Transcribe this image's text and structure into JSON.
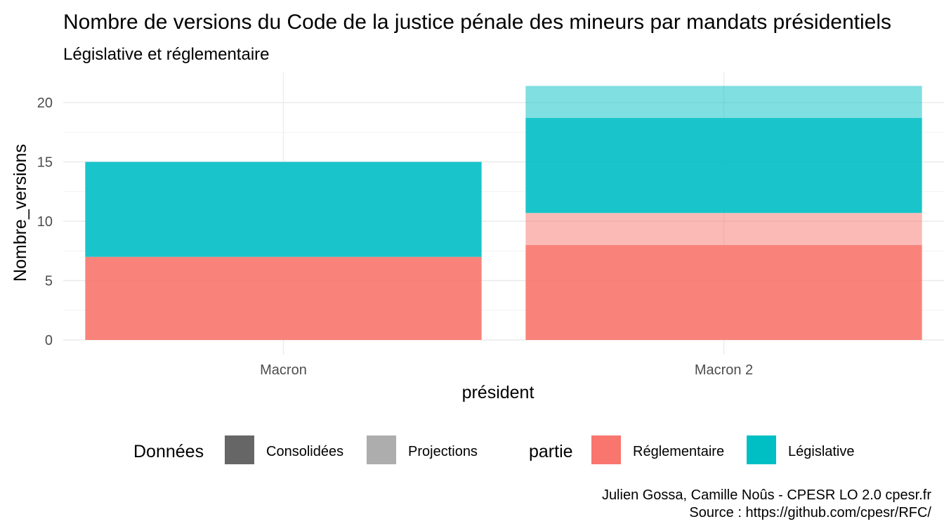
{
  "chart_data": {
    "type": "bar",
    "stacked": true,
    "title": "Nombre de versions du Code de la justice pénale des mineurs par mandats présidentiels",
    "subtitle": "Législative et réglementaire",
    "xlabel": "président",
    "ylabel": "Nombre_versions",
    "categories": [
      "Macron",
      "Macron 2"
    ],
    "ylim": [
      0,
      22.5
    ],
    "yticks": [
      0,
      5,
      10,
      15,
      20
    ],
    "grid": true,
    "series": [
      {
        "name": "Réglementaire",
        "donnees": "Consolidées",
        "values": [
          7,
          8
        ]
      },
      {
        "name": "Réglementaire",
        "donnees": "Projections",
        "values": [
          0,
          2.7
        ]
      },
      {
        "name": "Législative",
        "donnees": "Consolidées",
        "values": [
          8,
          8
        ]
      },
      {
        "name": "Législative",
        "donnees": "Projections",
        "values": [
          0,
          2.7
        ]
      }
    ],
    "legend": {
      "placement": "bottom",
      "groups": [
        {
          "title": "Données",
          "items": [
            {
              "label": "Consolidées",
              "color": "#666666"
            },
            {
              "label": "Projections",
              "color": "#adadad"
            }
          ]
        },
        {
          "title": "partie",
          "items": [
            {
              "label": "Réglementaire",
              "color": "#f8766d"
            },
            {
              "label": "Législative",
              "color": "#00bfc4"
            }
          ]
        }
      ]
    },
    "colors": {
      "Réglementaire": "#f8766d",
      "Législative": "#00bfc4"
    }
  },
  "caption": {
    "line1": "Julien Gossa, Camille Noûs - CPESR LO 2.0 cpesr.fr",
    "line2": "Source : https://github.com/cpesr/RFC/"
  }
}
